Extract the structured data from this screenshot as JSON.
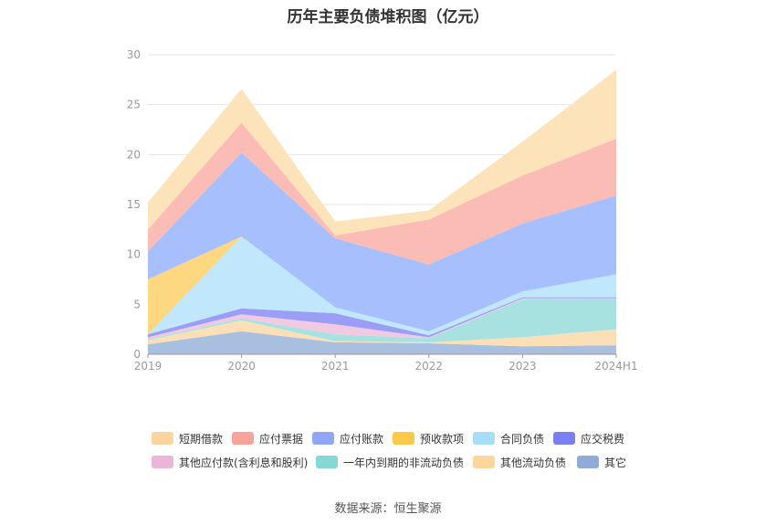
{
  "title": "历年主要负债堆积图（亿元）",
  "source": "数据来源：恒生聚源",
  "chart_data": {
    "type": "area",
    "stacked": true,
    "categories": [
      "2019",
      "2020",
      "2021",
      "2022",
      "2023",
      "2024H1"
    ],
    "ylim": [
      0,
      30
    ],
    "yticks": [
      0,
      5,
      10,
      15,
      20,
      25,
      30
    ],
    "grid": true,
    "legend_position": "bottom",
    "series": [
      {
        "name": "其它",
        "color": "#a9bfe0",
        "values": [
          1.0,
          2.3,
          1.2,
          1.1,
          0.8,
          0.9
        ]
      },
      {
        "name": "其他流动负债",
        "color": "#fbe0b7",
        "values": [
          0.4,
          1.1,
          0.1,
          0.1,
          0.9,
          1.6
        ]
      },
      {
        "name": "一年内到期的非流动负债",
        "color": "#a8e2e0",
        "values": [
          0.1,
          0.2,
          0.7,
          0.4,
          3.8,
          3.0
        ]
      },
      {
        "name": "其他应付款(含利息和股利)",
        "color": "#f1c9e2",
        "values": [
          0.2,
          0.4,
          1.0,
          0.1,
          0.1,
          0.1
        ]
      },
      {
        "name": "应交税费",
        "color": "#9a9ef5",
        "values": [
          0.3,
          0.6,
          1.1,
          0.2,
          0.1,
          0.1
        ]
      },
      {
        "name": "合同负债",
        "color": "#c0e7fb",
        "values": [
          0.0,
          7.2,
          0.6,
          0.4,
          0.6,
          2.3
        ]
      },
      {
        "name": "预收款项",
        "color": "#fdd880",
        "values": [
          5.5,
          0.0,
          0.0,
          0.0,
          0.0,
          0.0
        ]
      },
      {
        "name": "应付账款",
        "color": "#a7bffc",
        "values": [
          2.8,
          8.4,
          6.9,
          6.7,
          6.8,
          7.9
        ]
      },
      {
        "name": "应付票据",
        "color": "#fbbcb6",
        "values": [
          2.2,
          3.0,
          0.3,
          4.5,
          4.8,
          5.7
        ]
      },
      {
        "name": "短期借款",
        "color": "#fde3b9",
        "values": [
          2.7,
          3.4,
          1.4,
          0.9,
          3.4,
          6.9
        ]
      }
    ],
    "legend": [
      {
        "name": "短期借款",
        "color": "#fdd49e"
      },
      {
        "name": "应付票据",
        "color": "#f9a39a"
      },
      {
        "name": "应付账款",
        "color": "#8ea7fa"
      },
      {
        "name": "预收款项",
        "color": "#fdc94a"
      },
      {
        "name": "合同负债",
        "color": "#a6ddf9"
      },
      {
        "name": "应交税费",
        "color": "#7c7ff2"
      },
      {
        "name": "其他应付款(含利息和股利)",
        "color": "#ebb5d8"
      },
      {
        "name": "一年内到期的非流动负债",
        "color": "#86d8d6"
      },
      {
        "name": "其他流动负债",
        "color": "#fdd69b"
      },
      {
        "name": "其它",
        "color": "#91abd8"
      }
    ]
  }
}
